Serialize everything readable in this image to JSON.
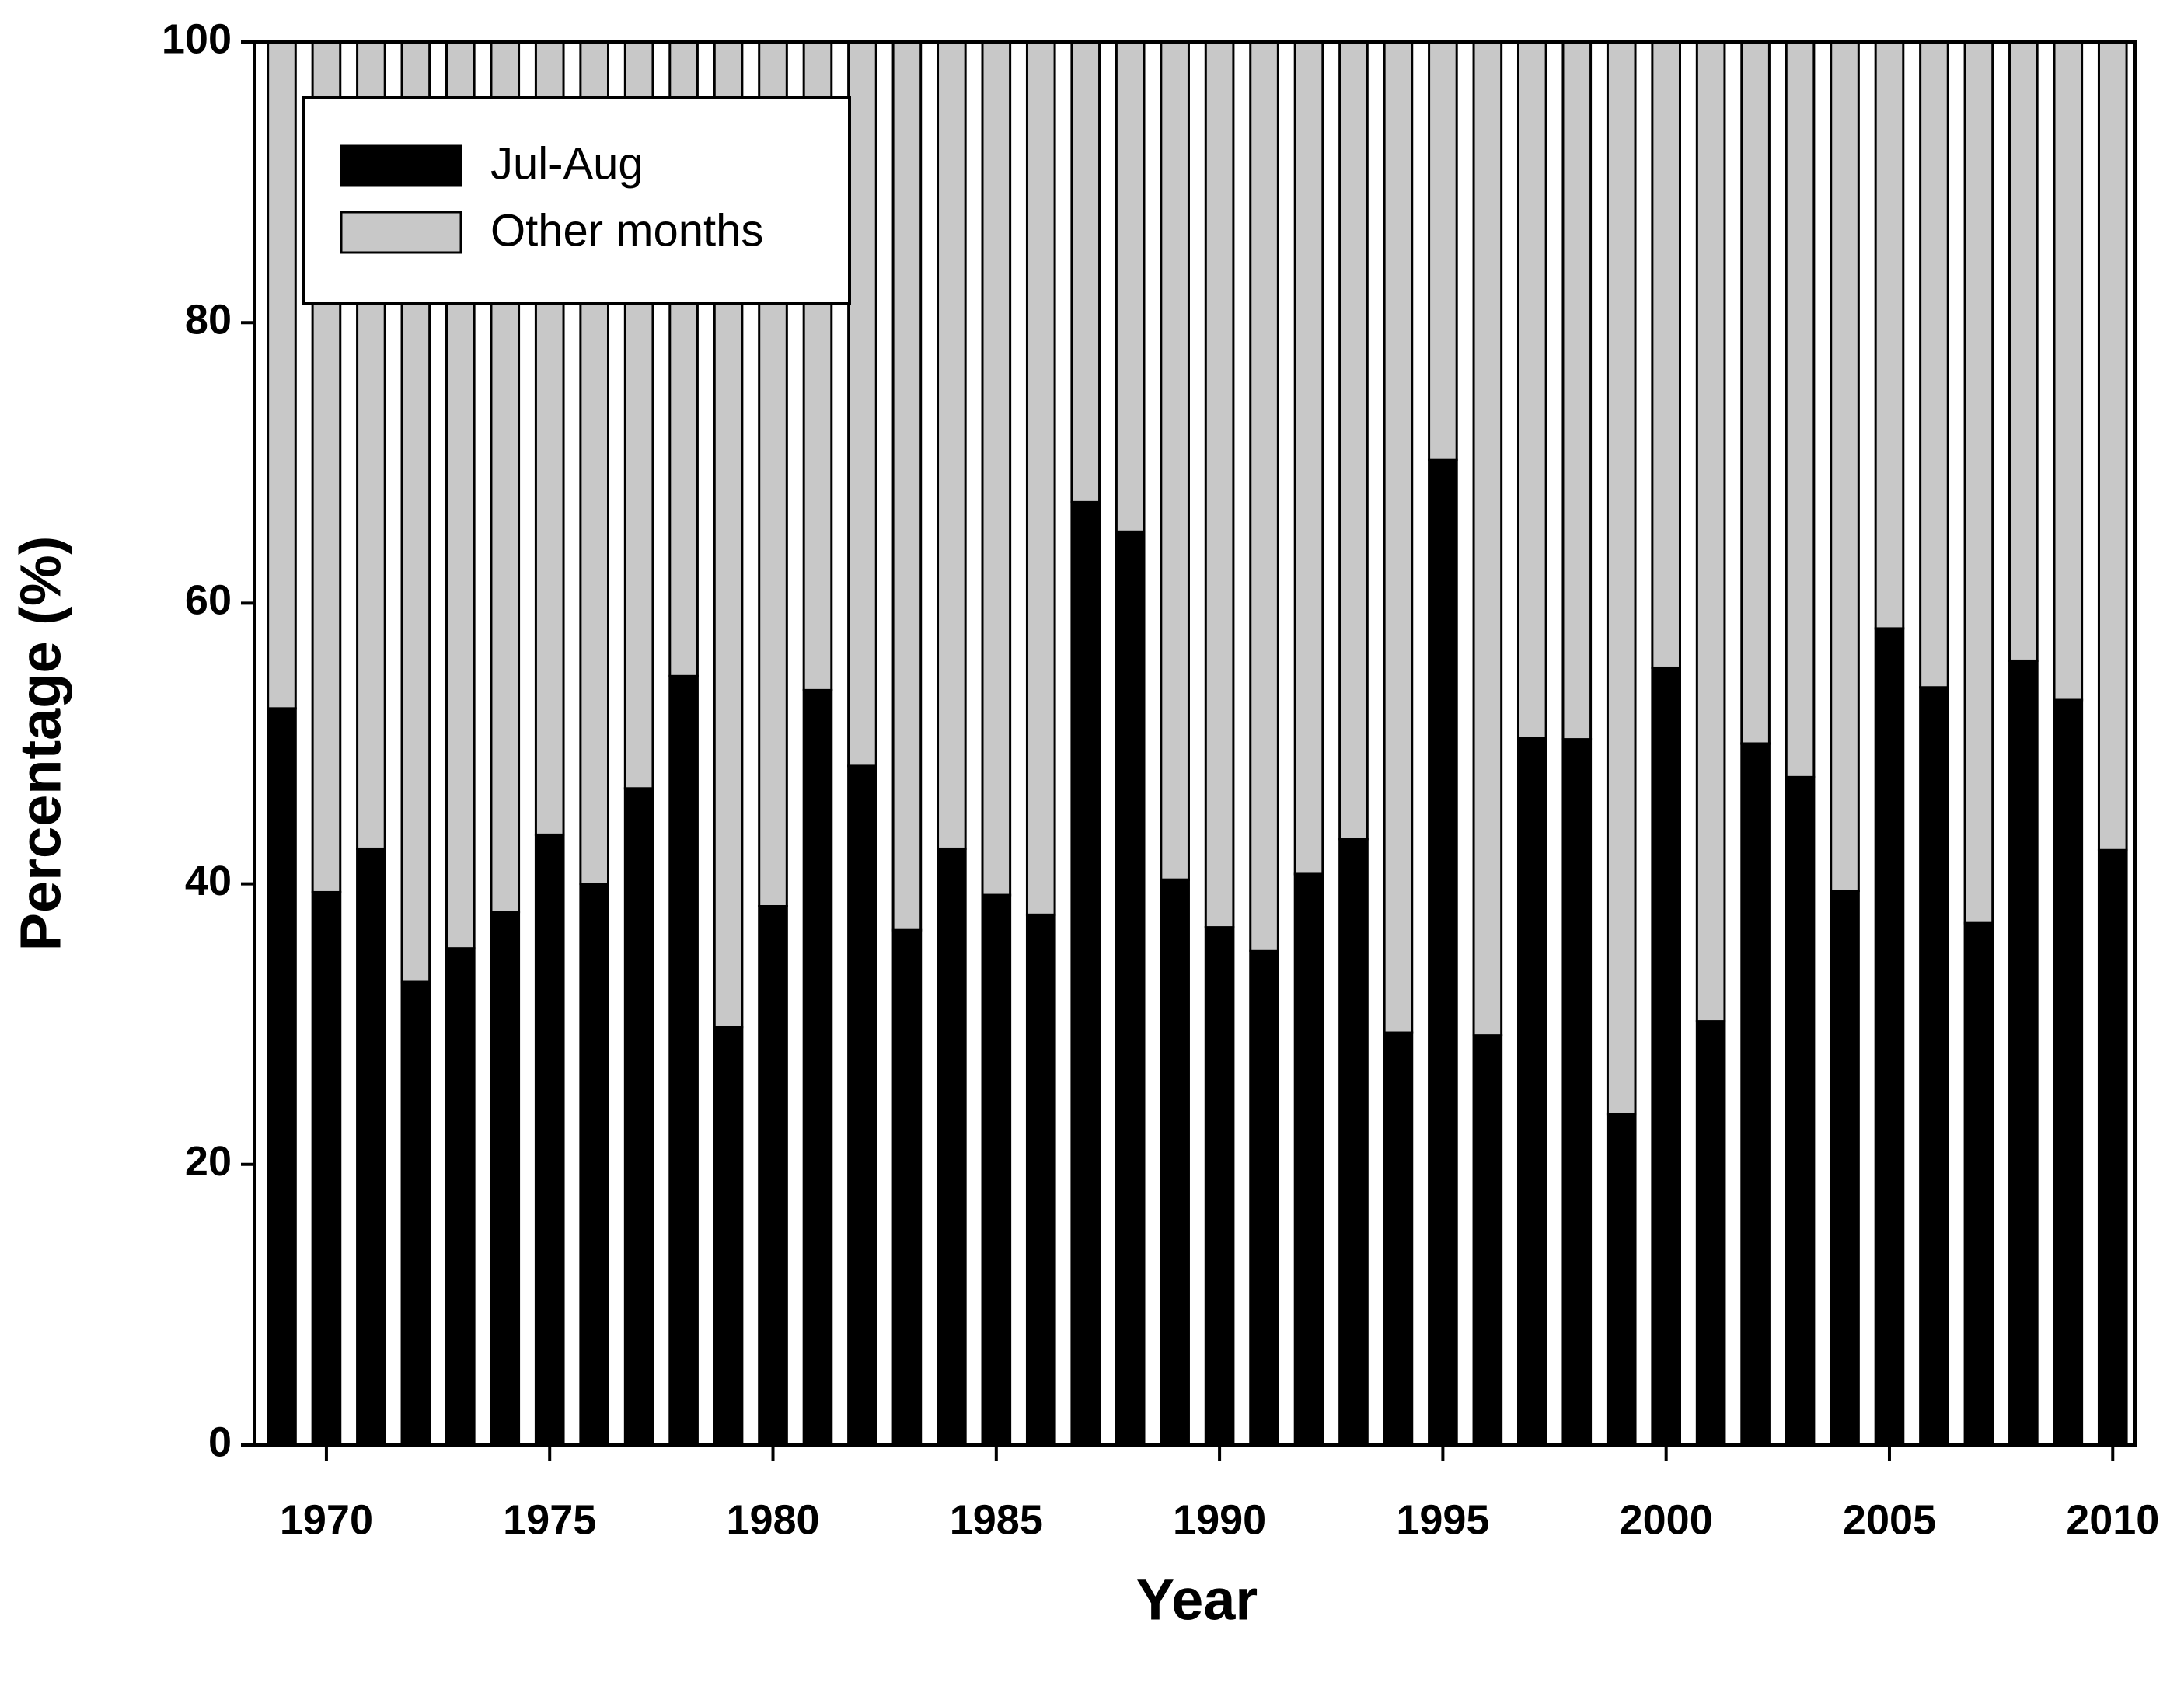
{
  "chart_data": {
    "type": "stacked_bar",
    "x_label": "Year",
    "y_label": "Percentage (%)",
    "x": [
      1969,
      1970,
      1971,
      1972,
      1973,
      1974,
      1975,
      1976,
      1977,
      1978,
      1979,
      1980,
      1981,
      1982,
      1983,
      1984,
      1985,
      1986,
      1987,
      1988,
      1989,
      1990,
      1991,
      1992,
      1993,
      1994,
      1995,
      1996,
      1997,
      1998,
      1999,
      2000,
      2001,
      2002,
      2003,
      2004,
      2005,
      2006,
      2007,
      2008,
      2009,
      2010
    ],
    "series": [
      {
        "name": "Jul-Aug",
        "color": "#000000",
        "values": [
          52.5,
          39.4,
          42.5,
          33,
          35.4,
          38,
          43.5,
          40,
          46.8,
          54.8,
          29.8,
          38.4,
          53.8,
          48.4,
          36.7,
          42.5,
          39.2,
          37.8,
          67.2,
          65.1,
          40.3,
          36.9,
          35.2,
          40.7,
          43.2,
          29.4,
          70.2,
          29.2,
          50.4,
          50.3,
          23.6,
          55.4,
          30.2,
          50,
          47.6,
          39.5,
          58.2,
          54,
          37.2,
          55.9,
          53.1,
          42.4
        ]
      },
      {
        "name": "Other months",
        "color": "#c8c8c8",
        "values": [
          47.5,
          60.6,
          57.5,
          67,
          64.6,
          62,
          56.5,
          60,
          53.2,
          45.2,
          70.2,
          61.6,
          46.2,
          51.6,
          63.3,
          57.5,
          60.8,
          62.2,
          32.8,
          34.9,
          59.7,
          63.1,
          64.8,
          59.3,
          56.8,
          70.6,
          29.8,
          70.8,
          49.6,
          49.7,
          76.4,
          44.6,
          69.8,
          50,
          52.4,
          60.5,
          41.8,
          46,
          62.8,
          44.1,
          46.9,
          57.6
        ]
      }
    ],
    "xlim": [
      1968.4,
      2010.5
    ],
    "xticks": [
      1970,
      1975,
      1980,
      1985,
      1990,
      1995,
      2000,
      2005,
      2010
    ],
    "ylim": [
      0,
      100
    ],
    "yticks": [
      0,
      20,
      40,
      60,
      80,
      100
    ],
    "legend": "upper-left"
  }
}
